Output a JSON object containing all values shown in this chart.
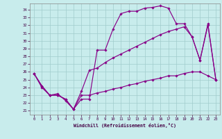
{
  "xlabel": "Windchill (Refroidissement éolien,°C)",
  "bg_color": "#c8ecec",
  "line_color": "#880088",
  "grid_color": "#a0cccc",
  "xlim": [
    -0.5,
    23.5
  ],
  "ylim": [
    20.5,
    34.8
  ],
  "xticks": [
    0,
    1,
    2,
    3,
    4,
    5,
    6,
    7,
    8,
    9,
    10,
    11,
    12,
    13,
    14,
    15,
    16,
    17,
    18,
    19,
    20,
    21,
    22,
    23
  ],
  "yticks": [
    21,
    22,
    23,
    24,
    25,
    26,
    27,
    28,
    29,
    30,
    31,
    32,
    33,
    34
  ],
  "curve1_x": [
    0,
    1,
    2,
    3,
    4,
    5,
    6,
    7,
    8,
    9,
    10,
    11,
    12,
    13,
    14,
    15,
    16,
    17,
    18,
    19,
    20,
    21,
    22,
    23
  ],
  "curve1_y": [
    25.8,
    24.0,
    23.0,
    23.2,
    22.3,
    21.2,
    22.5,
    22.5,
    28.8,
    28.8,
    31.5,
    33.5,
    33.8,
    33.8,
    34.2,
    34.3,
    34.5,
    34.2,
    32.2,
    32.2,
    30.5,
    27.5,
    32.2,
    25.0
  ],
  "curve2_x": [
    0,
    1,
    2,
    3,
    4,
    5,
    6,
    7,
    8,
    9,
    10,
    11,
    12,
    13,
    14,
    15,
    16,
    17,
    18,
    19,
    20,
    21,
    22,
    23
  ],
  "curve2_y": [
    25.8,
    24.2,
    23.0,
    23.0,
    22.5,
    21.2,
    23.5,
    26.2,
    26.5,
    27.2,
    27.8,
    28.3,
    28.8,
    29.3,
    29.8,
    30.3,
    30.8,
    31.2,
    31.5,
    31.8,
    30.5,
    27.5,
    32.0,
    25.0
  ],
  "curve3_x": [
    0,
    1,
    2,
    3,
    4,
    5,
    6,
    7,
    8,
    9,
    10,
    11,
    12,
    13,
    14,
    15,
    16,
    17,
    18,
    19,
    20,
    21,
    22,
    23
  ],
  "curve3_y": [
    25.8,
    24.2,
    23.0,
    23.0,
    22.5,
    21.2,
    23.0,
    23.0,
    23.3,
    23.5,
    23.8,
    24.0,
    24.3,
    24.5,
    24.8,
    25.0,
    25.2,
    25.5,
    25.5,
    25.8,
    26.0,
    26.0,
    25.5,
    25.0
  ]
}
